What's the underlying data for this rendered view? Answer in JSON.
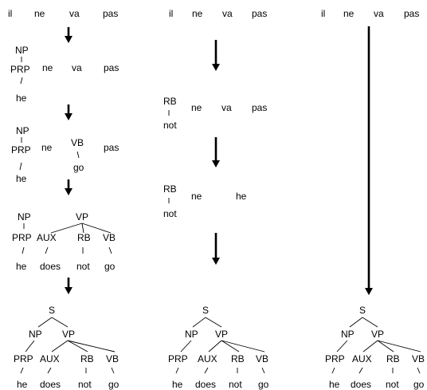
{
  "source_sentence": [
    "il",
    "ne",
    "va",
    "pas"
  ],
  "col1": {
    "step1": {
      "np": "NP",
      "prp": "PRP",
      "he": "he",
      "ne": "ne",
      "va": "va",
      "pas": "pas"
    },
    "step2": {
      "np": "NP",
      "prp": "PRP",
      "he": "he",
      "ne": "ne",
      "vb": "VB",
      "go": "go",
      "pas": "pas"
    },
    "step3": {
      "np": "NP",
      "prp": "PRP",
      "he": "he",
      "vp": "VP",
      "aux": "AUX",
      "does": "does",
      "rb": "RB",
      "not": "not",
      "vb": "VB",
      "go": "go"
    }
  },
  "col2": {
    "step1": {
      "rb": "RB",
      "not": "not",
      "ne": "ne",
      "va": "va",
      "pas": "pas"
    },
    "step2": {
      "rb": "RB",
      "not": "not",
      "ne": "ne",
      "he": "he"
    }
  },
  "final_tree": {
    "s": "S",
    "np": "NP",
    "vp": "VP",
    "prp": "PRP",
    "aux": "AUX",
    "rb": "RB",
    "vb": "VB",
    "he": "he",
    "does": "does",
    "not": "not",
    "go": "go"
  }
}
